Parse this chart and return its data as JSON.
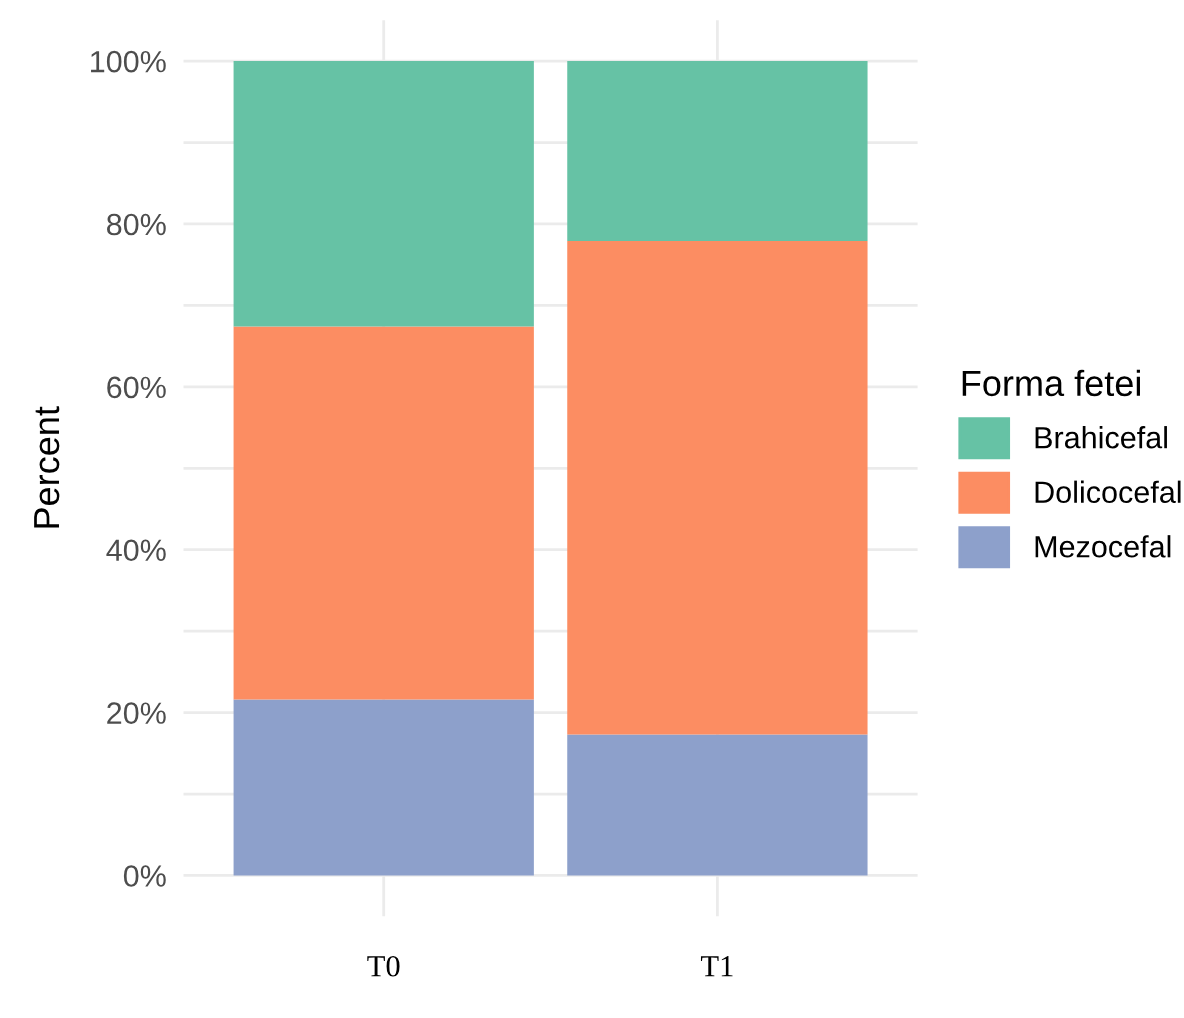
{
  "chart_data": {
    "type": "bar",
    "stacked": true,
    "ylabel": "Percent",
    "legend_title": "Forma fetei",
    "legend": "right",
    "grid": true,
    "categories": [
      "T0",
      "T1"
    ],
    "series": [
      {
        "name": "Mezocefal",
        "color": "#8da0cb",
        "values": [
          21.6,
          17.3
        ]
      },
      {
        "name": "Dolicocefal",
        "color": "#fc8d62",
        "values": [
          45.8,
          60.6
        ]
      },
      {
        "name": "Brahicefal",
        "color": "#66c2a5",
        "values": [
          32.6,
          22.1
        ]
      }
    ],
    "ylim": [
      -5,
      105
    ],
    "yticks": [
      {
        "value": 0,
        "label": "0%"
      },
      {
        "value": 10,
        "label": null
      },
      {
        "value": 20,
        "label": "20%"
      },
      {
        "value": 30,
        "label": null
      },
      {
        "value": 40,
        "label": "40%"
      },
      {
        "value": 50,
        "label": null
      },
      {
        "value": 60,
        "label": "60%"
      },
      {
        "value": 70,
        "label": null
      },
      {
        "value": 80,
        "label": "80%"
      },
      {
        "value": 90,
        "label": null
      },
      {
        "value": 100,
        "label": "100%"
      }
    ]
  }
}
